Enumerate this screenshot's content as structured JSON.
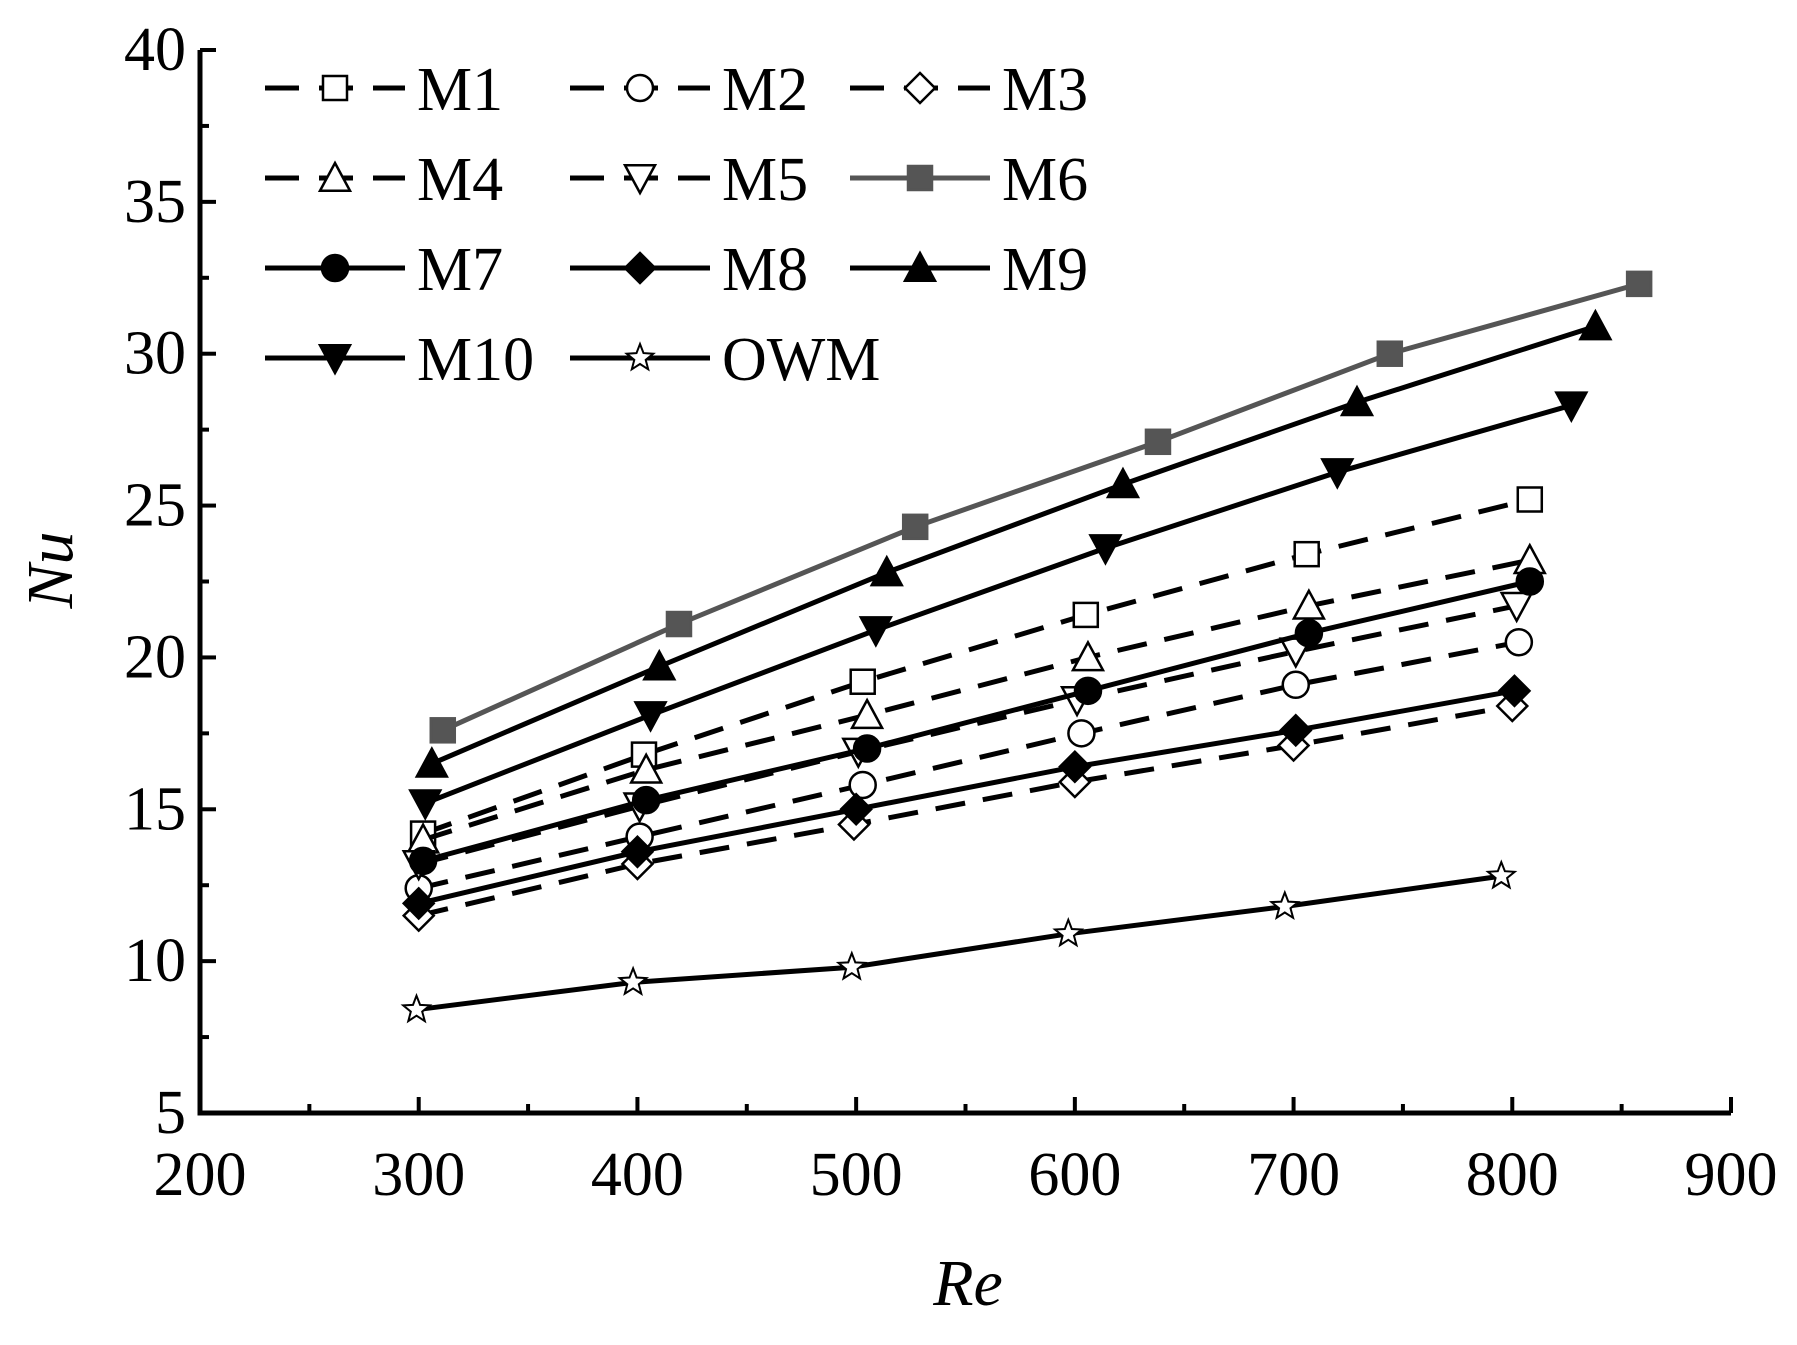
{
  "chart_data": {
    "type": "line",
    "title": "",
    "xlabel": "Re",
    "ylabel": "Nu",
    "xlim": [
      200,
      900
    ],
    "ylim": [
      5,
      40
    ],
    "x_ticks": [
      200,
      300,
      400,
      500,
      600,
      700,
      800,
      900
    ],
    "y_ticks": [
      5,
      10,
      15,
      20,
      25,
      30,
      35,
      40
    ],
    "x_tick_labels": [
      "200",
      "300",
      "400",
      "500",
      "600",
      "700",
      "800",
      "900"
    ],
    "y_tick_labels": [
      "5",
      "10",
      "15",
      "20",
      "25",
      "30",
      "35",
      "40"
    ],
    "grid": false,
    "legend_position": "top-left",
    "series": [
      {
        "name": "M1",
        "line": "dashed",
        "marker": "square",
        "filled": false,
        "color": "#000000",
        "x": [
          302,
          403,
          503,
          605,
          706,
          808
        ],
        "y": [
          14.2,
          16.8,
          19.2,
          21.4,
          23.4,
          25.2
        ]
      },
      {
        "name": "M2",
        "line": "dashed",
        "marker": "circle",
        "filled": false,
        "color": "#000000",
        "x": [
          300,
          401,
          503,
          603,
          701,
          803
        ],
        "y": [
          12.4,
          14.1,
          15.8,
          17.5,
          19.1,
          20.5
        ]
      },
      {
        "name": "M3",
        "line": "dashed",
        "marker": "diamond",
        "filled": false,
        "color": "#000000",
        "x": [
          300,
          400,
          499,
          600,
          700,
          800
        ],
        "y": [
          11.5,
          13.2,
          14.5,
          15.9,
          17.1,
          18.4
        ]
      },
      {
        "name": "M4",
        "line": "dashed",
        "marker": "triangle-up",
        "filled": false,
        "color": "#000000",
        "x": [
          302,
          404,
          505,
          606,
          707,
          808
        ],
        "y": [
          14.0,
          16.3,
          18.1,
          20.0,
          21.7,
          23.2
        ]
      },
      {
        "name": "M5",
        "line": "dashed",
        "marker": "triangle-down",
        "filled": false,
        "color": "#000000",
        "x": [
          300,
          401,
          501,
          601,
          701,
          802
        ],
        "y": [
          13.2,
          15.1,
          16.9,
          18.6,
          20.2,
          21.7
        ]
      },
      {
        "name": "M6",
        "line": "solid",
        "marker": "square",
        "filled": true,
        "color": "#555555",
        "x": [
          311,
          419,
          527,
          638,
          744,
          858
        ],
        "y": [
          17.6,
          21.1,
          24.3,
          27.1,
          30.0,
          32.3
        ]
      },
      {
        "name": "M7",
        "line": "solid",
        "marker": "circle",
        "filled": true,
        "color": "#000000",
        "x": [
          302,
          404,
          505,
          606,
          707,
          808
        ],
        "y": [
          13.3,
          15.3,
          17.0,
          18.9,
          20.8,
          22.5
        ]
      },
      {
        "name": "M8",
        "line": "solid",
        "marker": "diamond",
        "filled": true,
        "color": "#000000",
        "x": [
          300,
          400,
          500,
          600,
          701,
          801
        ],
        "y": [
          11.9,
          13.6,
          15.0,
          16.4,
          17.6,
          18.9
        ]
      },
      {
        "name": "M9",
        "line": "solid",
        "marker": "triangle-up",
        "filled": true,
        "color": "#000000",
        "x": [
          306,
          410,
          514,
          622,
          729,
          838
        ],
        "y": [
          16.5,
          19.7,
          22.8,
          25.7,
          28.4,
          30.9
        ]
      },
      {
        "name": "M10",
        "line": "solid",
        "marker": "triangle-down",
        "filled": true,
        "color": "#000000",
        "x": [
          303,
          406,
          509,
          614,
          720,
          827
        ],
        "y": [
          15.2,
          18.1,
          20.9,
          23.6,
          26.1,
          28.3
        ]
      },
      {
        "name": "OWM",
        "line": "solid",
        "marker": "star",
        "filled": false,
        "color": "#000000",
        "x": [
          299,
          398,
          498,
          597,
          696,
          795
        ],
        "y": [
          8.4,
          9.3,
          9.8,
          10.9,
          11.8,
          12.8
        ]
      }
    ]
  }
}
